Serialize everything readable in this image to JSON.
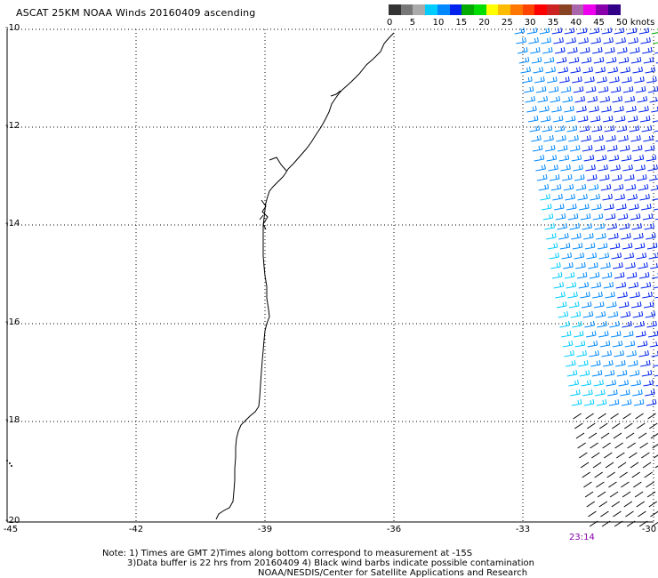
{
  "title": "ASCAT 25KM NOAA Winds 20160409 ascending",
  "colorbar": {
    "colors": [
      "#333333",
      "#777777",
      "#aaaaaa",
      "#00ccff",
      "#0088ff",
      "#0022ee",
      "#00aa00",
      "#00dd00",
      "#ffff00",
      "#ffbb00",
      "#ff7700",
      "#ff4400",
      "#ff0000",
      "#cc2222",
      "#884422",
      "#aa66aa",
      "#ee00ee",
      "#8800aa",
      "#330088"
    ],
    "labels": [
      "0",
      "5",
      "10",
      "15",
      "20",
      "25",
      "30",
      "35",
      "40",
      "45",
      "50 knots"
    ]
  },
  "lat_labels": [
    "-10",
    "-12",
    "-14",
    "-16",
    "-18",
    "-20"
  ],
  "lon_labels": [
    "-45",
    "-42",
    "-39",
    "-36",
    "-33",
    "-30"
  ],
  "swath_time": "23:14",
  "notes": [
    "Note: 1) Times are GMT 2)Times along bottom correspond to measurement at -15S",
    "3)Data buffer is 22 hrs from 20160409 4) Black wind barbs indicate possible contamination",
    "NOAA/NESDIS/Center for Satellite Applications and Research"
  ],
  "wind_colors": {
    "contaminated": "#000000",
    "low": "#00ccff",
    "mid": "#0088ff",
    "high": "#0022ee",
    "strong": "#00aa00"
  }
}
